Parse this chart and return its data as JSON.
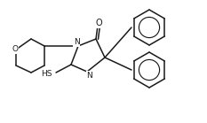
{
  "background": "#ffffff",
  "bond_color": "#1a1a1a",
  "line_width": 1.1,
  "figsize": [
    2.33,
    1.39
  ],
  "dpi": 100,
  "xlim": [
    0,
    233
  ],
  "ylim": [
    0,
    139
  ]
}
